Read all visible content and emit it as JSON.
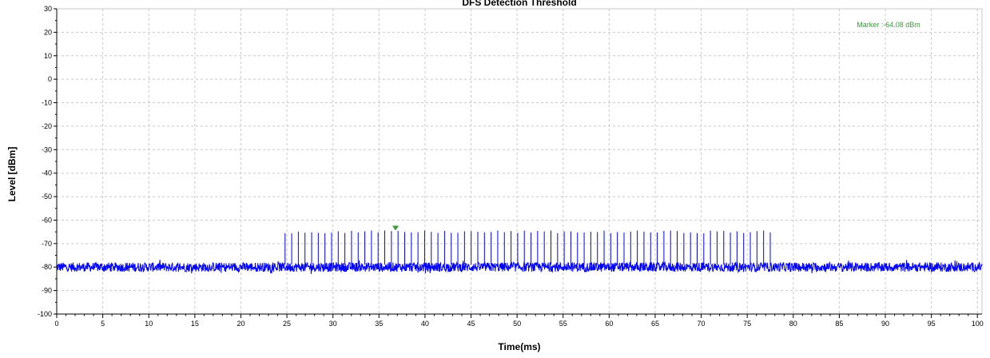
{
  "chart_data": {
    "type": "line",
    "title": "DFS Detection Threshold",
    "xlabel": "Time(ms)",
    "ylabel": "Level [dBm]",
    "xlim": [
      0,
      100.5
    ],
    "ylim": [
      -100,
      30
    ],
    "x_ticks": [
      0,
      5,
      10,
      15,
      20,
      25,
      30,
      35,
      40,
      45,
      50,
      55,
      60,
      65,
      70,
      75,
      80,
      85,
      90,
      95,
      100
    ],
    "y_ticks": [
      30,
      20,
      10,
      0,
      -10,
      -20,
      -30,
      -40,
      -50,
      -60,
      -70,
      -80,
      -90,
      -100
    ],
    "grid": true,
    "noise_floor_dbm": -80,
    "noise_band_dbm": [
      -82,
      -77
    ],
    "pulse_train": {
      "start_ms": 24.8,
      "end_ms": 77.5,
      "pulse_count": 74,
      "peak_level_dbm": -65
    },
    "marker": {
      "x_ms": 36.8,
      "level_dbm": -64.08,
      "label": "Marker :-64.08 dBm"
    },
    "colors": {
      "trace": "#0000ff",
      "marker": "#3a9a3a",
      "grid": "#c8c8c8"
    }
  }
}
